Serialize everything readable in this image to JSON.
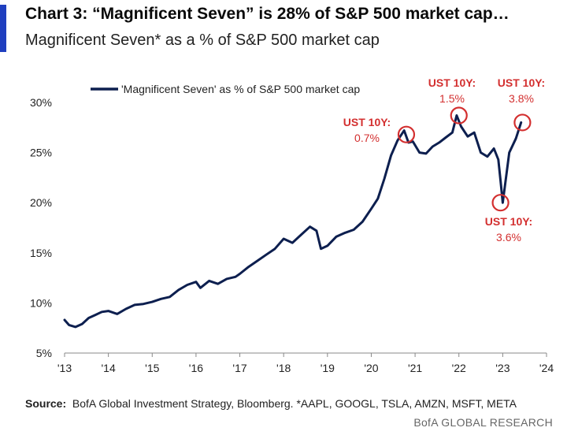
{
  "header": {
    "title": "Chart 3: “Magnificent Seven” is 28% of S&P 500 market cap…",
    "subtitle": "Magnificent Seven* as a % of S&P 500 market cap"
  },
  "footer": {
    "source_label": "Source:",
    "source_text": "BofA Global Investment Strategy, Bloomberg. *AAPL, GOOGL, TSLA, AMZN, MSFT, META",
    "branding": "BofA GLOBAL RESEARCH"
  },
  "colors": {
    "line": "#0d1f4f",
    "annotation": "#d32f2f",
    "accent": "#1f3fbf",
    "axis": "#333333"
  },
  "chart_data": {
    "type": "line",
    "title": "Chart 3: “Magnificent Seven” is 28% of S&P 500 market cap…",
    "subtitle": "Magnificent Seven* as a % of S&P 500 market cap",
    "xlabel": "",
    "ylabel": "",
    "xlim": [
      2013,
      2024
    ],
    "ylim": [
      5,
      30
    ],
    "x_ticks": [
      2013,
      2014,
      2015,
      2016,
      2017,
      2018,
      2019,
      2020,
      2021,
      2022,
      2023,
      2024
    ],
    "x_tick_labels": [
      "'13",
      "'14",
      "'15",
      "'16",
      "'17",
      "'18",
      "'19",
      "'20",
      "'21",
      "'22",
      "'23",
      "'24"
    ],
    "y_ticks": [
      5,
      10,
      15,
      20,
      25,
      30
    ],
    "y_tick_labels": [
      "5%",
      "10%",
      "15%",
      "20%",
      "25%",
      "30%"
    ],
    "grid": false,
    "legend_position": "top-left",
    "series": [
      {
        "name": "'Magnificent Seven' as % of S&P 500 market cap",
        "x": [
          2013.0,
          2013.1,
          2013.25,
          2013.4,
          2013.55,
          2013.7,
          2013.85,
          2014.0,
          2014.2,
          2014.4,
          2014.6,
          2014.8,
          2015.0,
          2015.2,
          2015.4,
          2015.6,
          2015.8,
          2016.0,
          2016.1,
          2016.3,
          2016.5,
          2016.7,
          2016.9,
          2017.0,
          2017.2,
          2017.4,
          2017.6,
          2017.8,
          2018.0,
          2018.2,
          2018.4,
          2018.6,
          2018.75,
          2018.85,
          2019.0,
          2019.2,
          2019.4,
          2019.6,
          2019.8,
          2020.0,
          2020.15,
          2020.3,
          2020.45,
          2020.6,
          2020.75,
          2020.85,
          2020.95,
          2021.1,
          2021.25,
          2021.4,
          2021.55,
          2021.7,
          2021.85,
          2021.95,
          2022.05,
          2022.2,
          2022.35,
          2022.5,
          2022.65,
          2022.8,
          2022.9,
          2022.95,
          2023.0,
          2023.15,
          2023.3,
          2023.42
        ],
        "values": [
          8.3,
          7.8,
          7.6,
          7.9,
          8.5,
          8.8,
          9.1,
          9.2,
          8.9,
          9.4,
          9.8,
          9.9,
          10.1,
          10.4,
          10.6,
          11.3,
          11.8,
          12.1,
          11.5,
          12.2,
          11.9,
          12.4,
          12.6,
          12.9,
          13.6,
          14.2,
          14.8,
          15.4,
          16.4,
          16.0,
          16.8,
          17.6,
          17.2,
          15.4,
          15.7,
          16.6,
          17.0,
          17.3,
          18.1,
          19.4,
          20.4,
          22.4,
          24.7,
          26.2,
          27.2,
          26.0,
          26.1,
          25.0,
          24.9,
          25.6,
          26.0,
          26.5,
          27.0,
          28.7,
          27.6,
          26.6,
          27.0,
          25.0,
          24.6,
          25.4,
          24.3,
          22.2,
          20.0,
          25.0,
          26.4,
          28.0
        ]
      }
    ],
    "annotations": [
      {
        "label": "UST 10Y:",
        "value": "0.7%",
        "x": 2020.8,
        "y": 26.8
      },
      {
        "label": "UST 10Y:",
        "value": "1.5%",
        "x": 2022.0,
        "y": 28.7
      },
      {
        "label": "UST 10Y:",
        "value": "3.6%",
        "x": 2022.95,
        "y": 20.0
      },
      {
        "label": "UST 10Y:",
        "value": "3.8%",
        "x": 2023.45,
        "y": 28.0
      }
    ]
  }
}
